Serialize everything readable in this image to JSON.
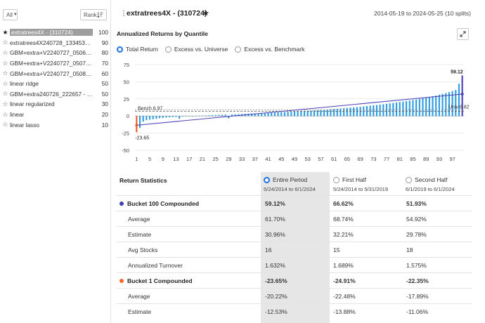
{
  "sidebar": {
    "filter_label": "All",
    "rank_label": "Rank",
    "models": [
      {
        "name": "extratrees4X - (310724)",
        "score": "100",
        "selected": true,
        "starred": true
      },
      {
        "name": "extratrees4X240728_133453(31...",
        "score": "90",
        "selected": false,
        "starred": false
      },
      {
        "name": "GBM+extra+V2240727_05064...",
        "score": "80",
        "selected": false,
        "starred": false
      },
      {
        "name": "GBM+extra+V2240727_05073...",
        "score": "70",
        "selected": false,
        "starred": false
      },
      {
        "name": "GBM+extra+V2240727_05082...",
        "score": "60",
        "selected": false,
        "starred": false
      },
      {
        "name": "linear ridge",
        "score": "50",
        "selected": false,
        "starred": false
      },
      {
        "name": "GBM+extra240726_222657 - (3...",
        "score": "50",
        "selected": false,
        "starred": false
      },
      {
        "name": "linear regularized",
        "score": "30",
        "selected": false,
        "starred": false
      },
      {
        "name": "linear",
        "score": "20",
        "selected": false,
        "starred": false
      },
      {
        "name": "linear lasso",
        "score": "10",
        "selected": false,
        "starred": false
      }
    ]
  },
  "header": {
    "title": "extratrees4X - (310724)",
    "date_range": "2014-05-19 to 2024-05-25 (10 splits)"
  },
  "chart_panel": {
    "title": "Annualized Returns by Quantile",
    "options": [
      {
        "label": "Total Return",
        "selected": true
      },
      {
        "label": "Excess vs. Universe",
        "selected": false
      },
      {
        "label": "Excess vs. Benchmark",
        "selected": false
      }
    ]
  },
  "chart_data": {
    "type": "bar",
    "title": "Annualized Returns by Quantile",
    "x_ticks": [
      "1",
      "5",
      "9",
      "13",
      "17",
      "21",
      "25",
      "29",
      "33",
      "37",
      "41",
      "45",
      "49",
      "53",
      "57",
      "61",
      "65",
      "69",
      "73",
      "77",
      "81",
      "85",
      "89",
      "93",
      "97"
    ],
    "y_ticks": [
      75,
      50,
      25,
      0,
      -25,
      -50
    ],
    "ylim": [
      -50,
      75
    ],
    "xlim": [
      1,
      100
    ],
    "bar_color": "#2d9be0",
    "first_bar_color": "#e85a2a",
    "last_bar_color": "#4a3fb8",
    "values": [
      -23.65,
      -17.5,
      -8.2,
      -6.1,
      -5.3,
      -4.6,
      -3.9,
      -3.2,
      -2.8,
      -2.2,
      -1.8,
      -1.5,
      -1.2,
      -4.0,
      -0.8,
      -0.5,
      -0.3,
      -0.1,
      0.2,
      0.4,
      0.6,
      0.8,
      1.0,
      1.2,
      1.4,
      1.6,
      1.8,
      2.0,
      -3.5,
      2.3,
      2.5,
      2.7,
      2.9,
      3.1,
      3.3,
      3.5,
      3.7,
      3.9,
      4.1,
      4.3,
      4.5,
      4.8,
      5.0,
      5.2,
      5.5,
      5.7,
      6.0,
      6.2,
      6.5,
      6.8,
      7.0,
      7.3,
      7.6,
      7.9,
      8.2,
      8.5,
      8.8,
      9.1,
      9.5,
      9.8,
      10.2,
      10.6,
      11.0,
      11.4,
      11.8,
      12.2,
      12.6,
      13.0,
      13.5,
      14.0,
      14.5,
      15.0,
      15.5,
      16.0,
      16.6,
      17.2,
      17.8,
      18.4,
      19.0,
      19.7,
      20.4,
      21.1,
      21.8,
      22.5,
      23.3,
      24.1,
      25.0,
      25.9,
      26.8,
      27.8,
      28.8,
      29.9,
      31.0,
      32.2,
      33.5,
      34.8,
      36.3,
      38.0,
      47.0,
      59.12
    ],
    "benchmark": {
      "label": "Bench 6.97",
      "value": 6.97
    },
    "universe": {
      "label": "Univ 8.82",
      "value": 8.82
    },
    "trend_start": -13.5,
    "trend_end": 32.0,
    "first_label": "-23.65",
    "last_label": "59.12"
  },
  "stats": {
    "section_label": "Return Statistics",
    "columns": [
      {
        "label": "Entire Period",
        "sub": "5/24/2014 to 6/1/2024",
        "selected": true
      },
      {
        "label": "First Half",
        "sub": "5/24/2014 to 5/31/2019",
        "selected": false
      },
      {
        "label": "Second Half",
        "sub": "6/1/2019 to 6/1/2024",
        "selected": false
      }
    ],
    "rows": [
      {
        "label": "Bucket 100 Compounded",
        "bucket": true,
        "dot": "#3f3fb0",
        "v": [
          "59.12%",
          "66.62%",
          "51.93%"
        ]
      },
      {
        "label": "Average",
        "bucket": false,
        "v": [
          "61.70%",
          "68.74%",
          "54.92%"
        ]
      },
      {
        "label": "Estimate",
        "bucket": false,
        "v": [
          "30.96%",
          "32.21%",
          "29.78%"
        ]
      },
      {
        "label": "Avg Stocks",
        "bucket": false,
        "v": [
          "16",
          "15",
          "18"
        ]
      },
      {
        "label": "Annualized Turnover",
        "bucket": false,
        "v": [
          "1.632%",
          "1.689%",
          "1.575%"
        ]
      },
      {
        "label": "Bucket 1 Compounded",
        "bucket": true,
        "dot": "#f06a2a",
        "v": [
          "-23.65%",
          "-24.91%",
          "-22.35%"
        ]
      },
      {
        "label": "Average",
        "bucket": false,
        "v": [
          "-20.22%",
          "-22.48%",
          "-17.89%"
        ]
      },
      {
        "label": "Estimate",
        "bucket": false,
        "v": [
          "-12.53%",
          "-13.88%",
          "-11.06%"
        ]
      }
    ]
  }
}
